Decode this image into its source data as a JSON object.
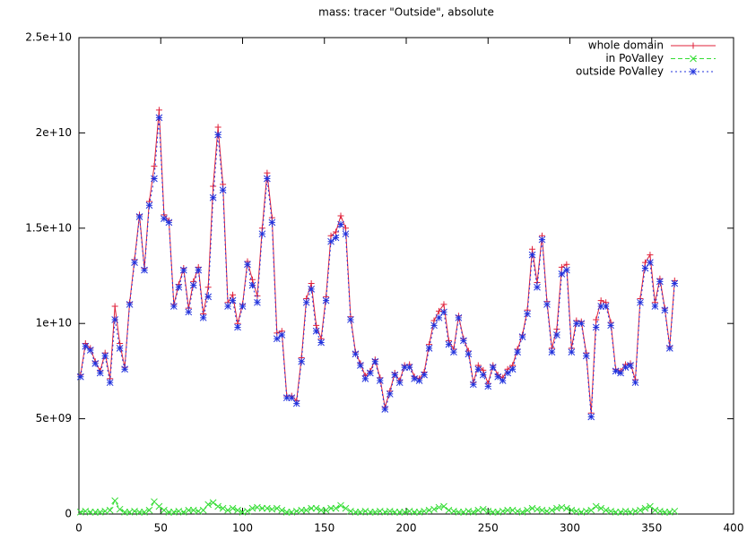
{
  "chart_data": {
    "type": "line",
    "title": "mass: tracer \"Outside\", absolute",
    "x": [
      1,
      4,
      7,
      10,
      13,
      16,
      19,
      22,
      25,
      28,
      31,
      34,
      37,
      40,
      43,
      46,
      49,
      52,
      55,
      58,
      61,
      64,
      67,
      70,
      73,
      76,
      79,
      82,
      85,
      88,
      91,
      94,
      97,
      100,
      103,
      106,
      109,
      112,
      115,
      118,
      121,
      124,
      127,
      130,
      133,
      136,
      139,
      142,
      145,
      148,
      151,
      154,
      157,
      160,
      163,
      166,
      169,
      172,
      175,
      178,
      181,
      184,
      187,
      190,
      193,
      196,
      199,
      202,
      205,
      208,
      211,
      214,
      217,
      220,
      223,
      226,
      229,
      232,
      235,
      238,
      241,
      244,
      247,
      250,
      253,
      256,
      259,
      262,
      265,
      268,
      271,
      274,
      277,
      280,
      283,
      286,
      289,
      292,
      295,
      298,
      301,
      304,
      307,
      310,
      313,
      316,
      319,
      322,
      325,
      328,
      331,
      334,
      337,
      340,
      343,
      346,
      349,
      352,
      355,
      358,
      361,
      364
    ],
    "series": [
      {
        "name": "whole domain",
        "color": "#e0203a",
        "line_style": "solid",
        "marker": "plus",
        "values": [
          7300000000.0,
          8950000000.0,
          8700000000.0,
          8000000000.0,
          7500000000.0,
          8450000000.0,
          7100000000.0,
          10900000000.0,
          8950000000.0,
          7700000000.0,
          11100000000.0,
          13350000000.0,
          15700000000.0,
          12900000000.0,
          16400000000.0,
          18250000000.0,
          21200000000.0,
          15700000000.0,
          15400000000.0,
          11000000000.0,
          12050000000.0,
          12900000000.0,
          10800000000.0,
          12200000000.0,
          12950000000.0,
          10500000000.0,
          11900000000.0,
          17200000000.0,
          20300000000.0,
          17300000000.0,
          11100000000.0,
          11500000000.0,
          10000000000.0,
          11000000000.0,
          13250000000.0,
          12300000000.0,
          11450000000.0,
          15000000000.0,
          17900000000.0,
          15550000000.0,
          9500000000.0,
          9600000000.0,
          6200000000.0,
          6200000000.0,
          5950000000.0,
          8200000000.0,
          11300000000.0,
          12100000000.0,
          9900000000.0,
          9200000000.0,
          11400000000.0,
          14600000000.0,
          14800000000.0,
          15650000000.0,
          15000000000.0,
          10350000000.0,
          8500000000.0,
          7900000000.0,
          7250000000.0,
          7500000000.0,
          8100000000.0,
          7150000000.0,
          5600000000.0,
          6450000000.0,
          7400000000.0,
          7000000000.0,
          7800000000.0,
          7850000000.0,
          7200000000.0,
          7100000000.0,
          7450000000.0,
          8900000000.0,
          10150000000.0,
          10650000000.0,
          11000000000.0,
          9100000000.0,
          8650000000.0,
          10400000000.0,
          9200000000.0,
          8550000000.0,
          6900000000.0,
          7800000000.0,
          7550000000.0,
          6850000000.0,
          7800000000.0,
          7300000000.0,
          7150000000.0,
          7600000000.0,
          7800000000.0,
          8650000000.0,
          9400000000.0,
          10700000000.0,
          13900000000.0,
          12150000000.0,
          14600000000.0,
          11150000000.0,
          8700000000.0,
          9700000000.0,
          12950000000.0,
          13100000000.0,
          8700000000.0,
          10150000000.0,
          10100000000.0,
          8450000000.0,
          5300000000.0,
          10200000000.0,
          11200000000.0,
          11100000000.0,
          10050000000.0,
          7600000000.0,
          7500000000.0,
          7850000000.0,
          7900000000.0,
          7050000000.0,
          11300000000.0,
          13200000000.0,
          13600000000.0,
          11100000000.0,
          12350000000.0,
          10800000000.0,
          8800000000.0,
          12250000000.0
        ]
      },
      {
        "name": "in PoValley",
        "color": "#33dd33",
        "line_style": "dashed",
        "marker": "cross",
        "values": [
          100000000.0,
          150000000.0,
          100000000.0,
          100000000.0,
          100000000.0,
          150000000.0,
          200000000.0,
          700000000.0,
          250000000.0,
          100000000.0,
          100000000.0,
          150000000.0,
          100000000.0,
          100000000.0,
          200000000.0,
          650000000.0,
          400000000.0,
          200000000.0,
          100000000.0,
          100000000.0,
          150000000.0,
          100000000.0,
          200000000.0,
          200000000.0,
          150000000.0,
          200000000.0,
          500000000.0,
          600000000.0,
          400000000.0,
          300000000.0,
          200000000.0,
          300000000.0,
          200000000.0,
          100000000.0,
          150000000.0,
          300000000.0,
          350000000.0,
          300000000.0,
          300000000.0,
          250000000.0,
          300000000.0,
          200000000.0,
          100000000.0,
          100000000.0,
          150000000.0,
          200000000.0,
          200000000.0,
          300000000.0,
          300000000.0,
          200000000.0,
          200000000.0,
          300000000.0,
          300000000.0,
          450000000.0,
          300000000.0,
          150000000.0,
          100000000.0,
          100000000.0,
          150000000.0,
          100000000.0,
          100000000.0,
          150000000.0,
          100000000.0,
          150000000.0,
          100000000.0,
          100000000.0,
          100000000.0,
          150000000.0,
          100000000.0,
          100000000.0,
          150000000.0,
          200000000.0,
          250000000.0,
          350000000.0,
          400000000.0,
          200000000.0,
          150000000.0,
          100000000.0,
          100000000.0,
          150000000.0,
          100000000.0,
          200000000.0,
          250000000.0,
          150000000.0,
          100000000.0,
          100000000.0,
          150000000.0,
          200000000.0,
          200000000.0,
          150000000.0,
          100000000.0,
          200000000.0,
          300000000.0,
          250000000.0,
          200000000.0,
          150000000.0,
          200000000.0,
          300000000.0,
          350000000.0,
          300000000.0,
          200000000.0,
          150000000.0,
          100000000.0,
          150000000.0,
          200000000.0,
          400000000.0,
          300000000.0,
          200000000.0,
          150000000.0,
          100000000.0,
          100000000.0,
          150000000.0,
          100000000.0,
          150000000.0,
          200000000.0,
          300000000.0,
          400000000.0,
          200000000.0,
          150000000.0,
          100000000.0,
          100000000.0,
          150000000.0
        ]
      },
      {
        "name": "outside PoValley",
        "color": "#2233dd",
        "line_style": "dotted",
        "marker": "star",
        "values": [
          7200000000.0,
          8800000000.0,
          8600000000.0,
          7900000000.0,
          7400000000.0,
          8300000000.0,
          6900000000.0,
          10200000000.0,
          8700000000.0,
          7600000000.0,
          11000000000.0,
          13200000000.0,
          15600000000.0,
          12800000000.0,
          16200000000.0,
          17600000000.0,
          20800000000.0,
          15500000000.0,
          15300000000.0,
          10900000000.0,
          11900000000.0,
          12800000000.0,
          10600000000.0,
          12000000000.0,
          12800000000.0,
          10300000000.0,
          11400000000.0,
          16600000000.0,
          19900000000.0,
          17000000000.0,
          10900000000.0,
          11200000000.0,
          9800000000.0,
          10900000000.0,
          13100000000.0,
          12000000000.0,
          11100000000.0,
          14700000000.0,
          17600000000.0,
          15300000000.0,
          9200000000.0,
          9400000000.0,
          6100000000.0,
          6100000000.0,
          5800000000.0,
          8000000000.0,
          11100000000.0,
          11800000000.0,
          9600000000.0,
          9000000000.0,
          11200000000.0,
          14300000000.0,
          14500000000.0,
          15200000000.0,
          14700000000.0,
          10200000000.0,
          8400000000.0,
          7800000000.0,
          7100000000.0,
          7400000000.0,
          8000000000.0,
          7000000000.0,
          5500000000.0,
          6300000000.0,
          7300000000.0,
          6900000000.0,
          7700000000.0,
          7700000000.0,
          7100000000.0,
          7000000000.0,
          7300000000.0,
          8700000000.0,
          9900000000.0,
          10300000000.0,
          10600000000.0,
          8900000000.0,
          8500000000.0,
          10300000000.0,
          9100000000.0,
          8400000000.0,
          6800000000.0,
          7600000000.0,
          7300000000.0,
          6700000000.0,
          7700000000.0,
          7200000000.0,
          7000000000.0,
          7400000000.0,
          7600000000.0,
          8500000000.0,
          9300000000.0,
          10500000000.0,
          13600000000.0,
          11900000000.0,
          14400000000.0,
          11000000000.0,
          8500000000.0,
          9400000000.0,
          12600000000.0,
          12800000000.0,
          8500000000.0,
          10000000000.0,
          10000000000.0,
          8300000000.0,
          5100000000.0,
          9800000000.0,
          10900000000.0,
          10900000000.0,
          9900000000.0,
          7500000000.0,
          7400000000.0,
          7700000000.0,
          7800000000.0,
          6900000000.0,
          11100000000.0,
          12900000000.0,
          13200000000.0,
          10900000000.0,
          12200000000.0,
          10700000000.0,
          8700000000.0,
          12100000000.0
        ]
      }
    ],
    "xlim": [
      0,
      400
    ],
    "xticks": [
      0,
      50,
      100,
      150,
      200,
      250,
      300,
      350,
      400
    ],
    "ylim": [
      0,
      25000000000.0
    ],
    "yticks": [
      0,
      {
        "value": 5000000000.0,
        "label": "5e+09"
      },
      {
        "value": 10000000000.0,
        "label": "1e+10"
      },
      {
        "value": 15000000000.0,
        "label": "1.5e+10"
      },
      {
        "value": 20000000000.0,
        "label": "2e+10"
      },
      {
        "value": 25000000000.0,
        "label": "2.5e+10"
      }
    ],
    "legend": "top-right",
    "grid": false
  }
}
